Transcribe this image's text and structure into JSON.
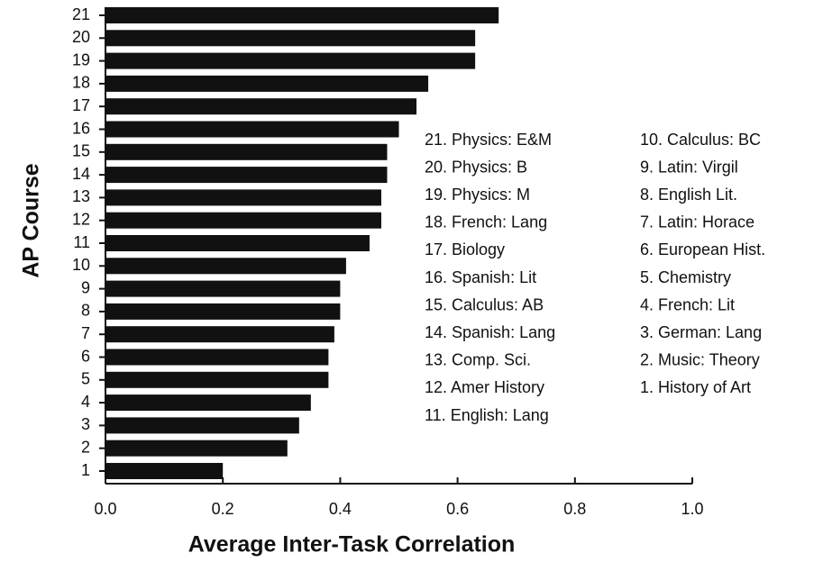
{
  "chart_data": {
    "type": "barh",
    "categories": [
      "1",
      "2",
      "3",
      "4",
      "5",
      "6",
      "7",
      "8",
      "9",
      "10",
      "11",
      "12",
      "13",
      "14",
      "15",
      "16",
      "17",
      "18",
      "19",
      "20",
      "21"
    ],
    "values": [
      0.2,
      0.31,
      0.33,
      0.35,
      0.38,
      0.38,
      0.39,
      0.4,
      0.4,
      0.41,
      0.45,
      0.47,
      0.47,
      0.48,
      0.48,
      0.5,
      0.53,
      0.55,
      0.63,
      0.63,
      0.67
    ],
    "color": "#111111",
    "xlim": [
      0,
      1
    ],
    "xticks": [
      {
        "value": 0,
        "label": "0.0"
      },
      0.2,
      0.4,
      0.6,
      0.8,
      {
        "value": 1,
        "label": "1.0"
      }
    ],
    "xlabel": "Average Inter-Task Correlation",
    "ylabel": "AP Course",
    "course_key": [
      [
        "21. Physics: E&M",
        "20. Physics: B",
        "19. Physics: M",
        "18. French: Lang",
        "17. Biology",
        "16. Spanish: Lit",
        "15. Calculus: AB",
        "14. Spanish: Lang",
        "13. Comp. Sci.",
        "12. Amer History",
        "11. English: Lang"
      ],
      [
        "10. Calculus: BC",
        "9. Latin: Virgil",
        "8. English Lit.",
        "7. Latin: Horace",
        "6. European Hist.",
        "5. Chemistry",
        "4. French: Lit",
        "3. German: Lang",
        "2. Music: Theory",
        "1. History of Art"
      ]
    ]
  }
}
